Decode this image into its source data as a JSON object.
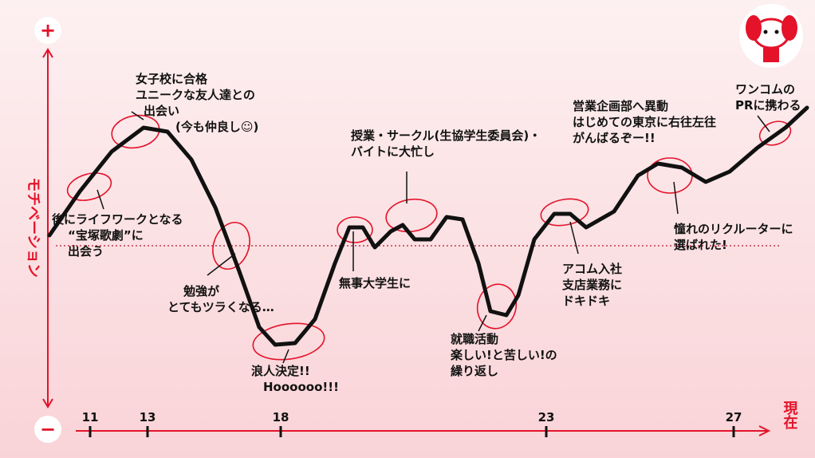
{
  "axis": {
    "y_label": "モチベーション",
    "plus": "+",
    "minus": "−",
    "now": "現在"
  },
  "ages": [
    "11",
    "13",
    "18",
    "23",
    "27"
  ],
  "annotations": [
    {
      "lines": [
        "後にライフワークとなる",
        "“宝塚歌劇”に",
        "出会う"
      ]
    },
    {
      "lines": [
        "女子校に合格",
        "ユニークな友人達との",
        "出会い",
        "(今も仲良し☺)"
      ]
    },
    {
      "lines": [
        "勉強が",
        "とてもツラくなる…"
      ]
    },
    {
      "lines": [
        "浪人決定!!",
        "Hoooooo!!!"
      ]
    },
    {
      "lines": [
        "無事大学生に"
      ]
    },
    {
      "lines": [
        "授業・サークル(生協学生委員会)・",
        "バイトに大忙し"
      ]
    },
    {
      "lines": [
        "就職活動",
        "楽しい!と苦しい!の",
        "繰り返し"
      ]
    },
    {
      "lines": [
        "アコム入社",
        "支店業務に",
        "ドキドキ"
      ]
    },
    {
      "lines": [
        "営業企画部へ異動",
        "はじめての東京に右往左往",
        "がんばるぞー!!"
      ]
    },
    {
      "lines": [
        "憧れのリクルーターに",
        "選ばれた!"
      ]
    },
    {
      "lines": [
        "ワンコムの",
        "PRに携わる"
      ]
    }
  ]
}
